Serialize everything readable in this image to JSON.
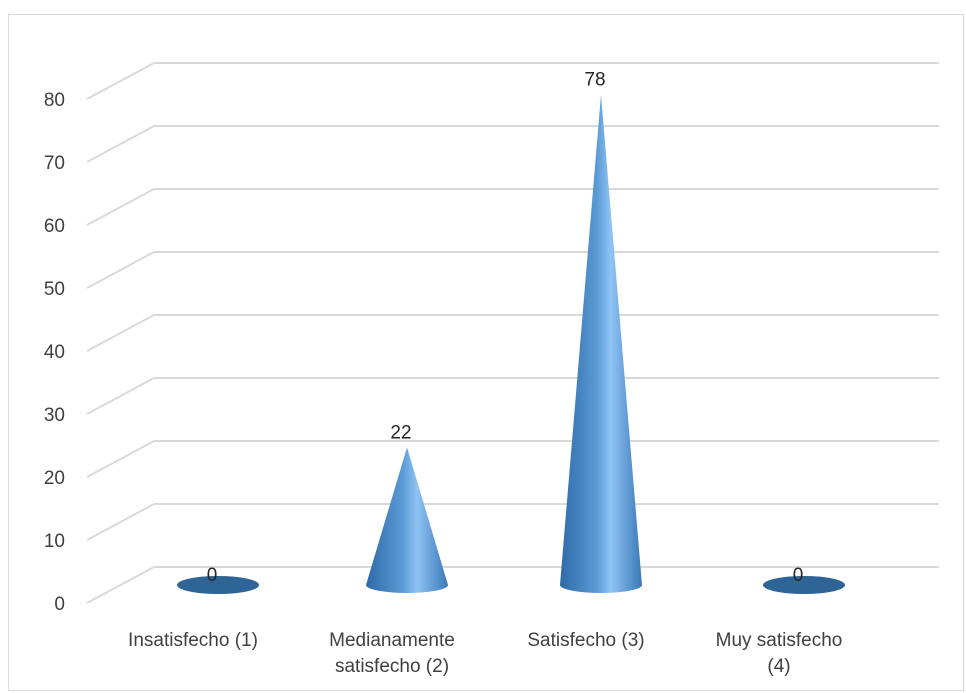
{
  "chart_data": {
    "type": "bar",
    "style": "3d-cone",
    "categories": [
      [
        "Insatisfecho (1)"
      ],
      [
        "Medianamente",
        "satisfecho (2)"
      ],
      [
        "Satisfecho (3)"
      ],
      [
        "Muy satisfecho",
        "(4)"
      ]
    ],
    "values": [
      0,
      22,
      78,
      0
    ],
    "data_labels": [
      "0",
      "22",
      "78",
      "0"
    ],
    "y_ticks": [
      "0",
      "10",
      "20",
      "30",
      "40",
      "50",
      "60",
      "70",
      "80"
    ],
    "ylim": [
      0,
      80
    ],
    "grid": true,
    "legend": "none",
    "title": "",
    "xlabel": "",
    "ylabel": ""
  },
  "colors": {
    "cone_dark": "#2e6aa8",
    "cone_light": "#8fc4f5",
    "cone_mid": "#5b9bd5",
    "flat_disk": "#2f6596",
    "grid": "#d9d9d9",
    "tick_text": "#404040",
    "label_text": "#262626"
  }
}
